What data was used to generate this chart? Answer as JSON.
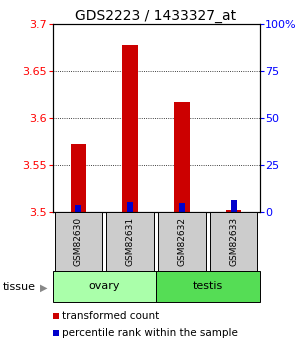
{
  "title": "GDS2223 / 1433327_at",
  "samples": [
    "GSM82630",
    "GSM82631",
    "GSM82632",
    "GSM82633"
  ],
  "red_values": [
    3.573,
    3.678,
    3.617,
    3.502
  ],
  "blue_values": [
    3.508,
    3.511,
    3.51,
    3.513
  ],
  "ylim_left": [
    3.5,
    3.7
  ],
  "ylim_right": [
    0,
    100
  ],
  "yticks_left": [
    3.5,
    3.55,
    3.6,
    3.65,
    3.7
  ],
  "yticks_right": [
    0,
    25,
    50,
    75,
    100
  ],
  "ytick_labels_left": [
    "3.5",
    "3.55",
    "3.6",
    "3.65",
    "3.7"
  ],
  "ytick_labels_right": [
    "0",
    "25",
    "50",
    "75",
    "100%"
  ],
  "bar_bottom": 3.5,
  "red_bar_width": 0.3,
  "blue_bar_width": 0.12,
  "sample_box_color": "#cccccc",
  "ovary_color": "#aaffaa",
  "testis_color": "#55dd55",
  "red_color": "#cc0000",
  "blue_color": "#0000cc",
  "legend_red": "transformed count",
  "legend_blue": "percentile rank within the sample",
  "title_fontsize": 10,
  "tick_fontsize": 8,
  "legend_fontsize": 7.5
}
